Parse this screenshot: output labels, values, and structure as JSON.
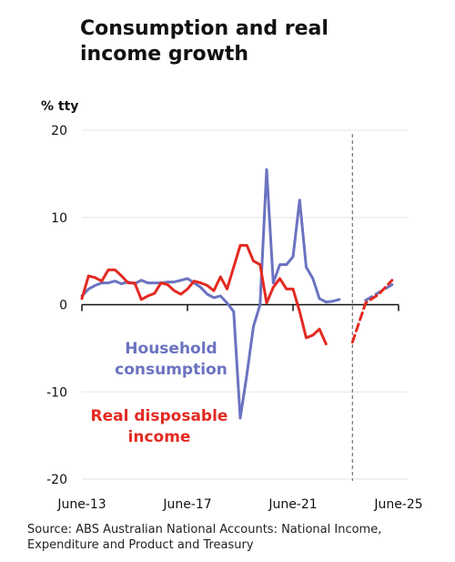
{
  "title_lines": [
    "Consumption and real",
    "income growth"
  ],
  "source": "Source: ABS Australian National Accounts: National Income, Expenditure and Product and Treasury",
  "chart_data": {
    "type": "line",
    "title": "Consumption and real income growth",
    "ylabel": "% tty",
    "ylim": [
      -20,
      20
    ],
    "yticks": [
      20,
      10,
      0,
      -10,
      -20
    ],
    "xlim": [
      2013.5,
      2025.5
    ],
    "xticks": [
      {
        "label": "June-13",
        "value": 2013.5
      },
      {
        "label": "June-17",
        "value": 2017.5
      },
      {
        "label": "June-21",
        "value": 2021.5
      },
      {
        "label": "June-25",
        "value": 2025.5
      }
    ],
    "forecast_divider": 2023.75,
    "grid": true,
    "series": [
      {
        "name": "Household consumption",
        "label_lines": [
          "Household",
          "consumption"
        ],
        "color": "#6b73c0",
        "x": [
          2013.5,
          2013.75,
          2014,
          2014.25,
          2014.5,
          2014.75,
          2015,
          2015.25,
          2015.5,
          2015.75,
          2016,
          2016.25,
          2016.5,
          2016.75,
          2017,
          2017.25,
          2017.5,
          2017.75,
          2018,
          2018.25,
          2018.5,
          2018.75,
          2019,
          2019.25,
          2019.5,
          2019.75,
          2020,
          2020.25,
          2020.5,
          2020.75,
          2021,
          2021.25,
          2021.5,
          2021.75,
          2022,
          2022.25,
          2022.5,
          2022.75,
          2023,
          2023.25,
          2023.5,
          2023.75,
          2024,
          2024.25,
          2024.5,
          2024.75,
          2025,
          2025.25
        ],
        "y": [
          1.0,
          1.8,
          2.2,
          2.5,
          2.5,
          2.7,
          2.4,
          2.6,
          2.4,
          2.8,
          2.5,
          2.5,
          2.5,
          2.6,
          2.6,
          2.8,
          3.0,
          2.5,
          2.0,
          1.2,
          0.8,
          1.0,
          0.2,
          -0.8,
          -13.0,
          -8.0,
          -2.5,
          0.0,
          15.5,
          2.5,
          4.6,
          4.6,
          5.5,
          12.0,
          4.3,
          3.0,
          0.7,
          0.3,
          0.4,
          0.6,
          null,
          null,
          null,
          null,
          null,
          null,
          null,
          null
        ],
        "forecast": {
          "x": [
            2024.25,
            2025.25
          ],
          "y": [
            0.5,
            2.3
          ]
        }
      },
      {
        "name": "Real disposable income",
        "label_lines": [
          "Real disposable",
          "income"
        ],
        "color": "#e32a22",
        "x": [
          2013.5,
          2013.75,
          2014,
          2014.25,
          2014.5,
          2014.75,
          2015,
          2015.25,
          2015.5,
          2015.75,
          2016,
          2016.25,
          2016.5,
          2016.75,
          2017,
          2017.25,
          2017.5,
          2017.75,
          2018,
          2018.25,
          2018.5,
          2018.75,
          2019,
          2019.25,
          2019.5,
          2019.75,
          2020,
          2020.25,
          2020.5,
          2020.75,
          2021,
          2021.25,
          2021.5,
          2021.75,
          2022,
          2022.25,
          2022.5,
          2022.75,
          2023,
          2023.25,
          2023.5,
          2023.75
        ],
        "y": [
          0.7,
          3.3,
          3.1,
          2.7,
          4.0,
          4.0,
          3.3,
          2.5,
          2.5,
          0.6,
          1.0,
          1.3,
          2.5,
          2.3,
          1.6,
          1.2,
          1.8,
          2.7,
          2.5,
          2.2,
          1.6,
          3.2,
          1.8,
          4.3,
          6.8,
          6.8,
          5.0,
          4.6,
          0.2,
          2.0,
          3.0,
          1.8,
          1.8,
          -0.8,
          -3.8,
          -3.5,
          -2.8,
          -4.5,
          null,
          null,
          null,
          null
        ],
        "forecast": {
          "x": [
            2023.75,
            2024.25,
            2024.75,
            2025.25
          ],
          "y": [
            -4.3,
            0.2,
            1.2,
            2.8
          ]
        }
      }
    ]
  }
}
